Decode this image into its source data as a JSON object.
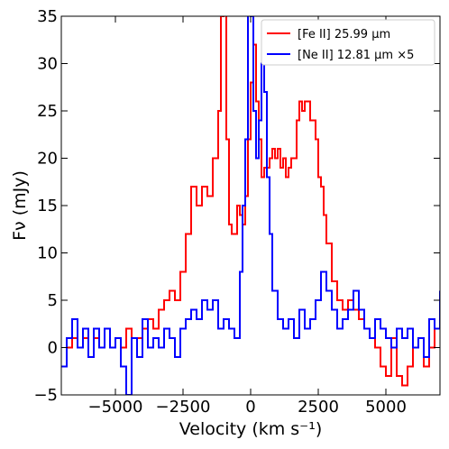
{
  "chart_data": {
    "type": "line",
    "title": "",
    "xlabel": "Velocity (km s⁻¹)",
    "ylabel": "Fν (mJy)",
    "xlim": [
      -7000,
      7000
    ],
    "ylim": [
      -5,
      35
    ],
    "xticks": [
      -5000,
      -2500,
      0,
      2500,
      5000
    ],
    "yticks": [
      -5,
      0,
      5,
      10,
      15,
      20,
      25,
      30,
      35
    ],
    "xtick_labels": [
      "−5000",
      "−2500",
      "0",
      "2500",
      "5000"
    ],
    "ytick_labels": [
      "−5",
      "0",
      "5",
      "10",
      "15",
      "20",
      "25",
      "30",
      "35"
    ],
    "grid": false,
    "legend_position": "top-right",
    "series": [
      {
        "name": "[Fe II] 25.99 μm",
        "color": "#ff0000",
        "step": true,
        "x": [
          -7000,
          -6800,
          -6600,
          -6400,
          -6200,
          -6000,
          -5800,
          -5600,
          -5400,
          -5200,
          -5000,
          -4800,
          -4600,
          -4400,
          -4200,
          -4000,
          -3800,
          -3600,
          -3400,
          -3200,
          -3000,
          -2800,
          -2600,
          -2400,
          -2200,
          -2000,
          -1800,
          -1600,
          -1400,
          -1200,
          -1100,
          -1000,
          -900,
          -800,
          -700,
          -600,
          -500,
          -400,
          -300,
          -200,
          -100,
          0,
          100,
          200,
          300,
          400,
          500,
          600,
          700,
          800,
          900,
          1000,
          1100,
          1200,
          1300,
          1400,
          1500,
          1600,
          1700,
          1800,
          1900,
          2000,
          2200,
          2400,
          2500,
          2600,
          2700,
          2800,
          3000,
          3200,
          3400,
          3600,
          3800,
          4000,
          4200,
          4400,
          4600,
          4800,
          5000,
          5200,
          5400,
          5600,
          5800,
          6000,
          6200,
          6400,
          6600,
          6800,
          7000
        ],
        "y": [
          -2,
          0,
          1,
          0,
          1,
          -1,
          1,
          0,
          2,
          0,
          1,
          0,
          2,
          1,
          1,
          2,
          3,
          2,
          4,
          5,
          6,
          5,
          8,
          12,
          17,
          15,
          17,
          16,
          20,
          25,
          35,
          40,
          22,
          13,
          12,
          12,
          15,
          14,
          13,
          16,
          22,
          28,
          32,
          26,
          22,
          18,
          19,
          19,
          20,
          21,
          20,
          21,
          19,
          20,
          18,
          19,
          20,
          20,
          24,
          26,
          25,
          26,
          24,
          22,
          18,
          17,
          14,
          11,
          7,
          5,
          4,
          5,
          4,
          3,
          2,
          1,
          0,
          -2,
          -3,
          1,
          -3,
          -4,
          -2,
          0,
          1,
          -2,
          0,
          2,
          3
        ]
      },
      {
        "name": "[Ne II] 12.81 μm ×5",
        "color": "#0000ff",
        "step": true,
        "x": [
          -7000,
          -6800,
          -6600,
          -6400,
          -6200,
          -6000,
          -5800,
          -5600,
          -5400,
          -5200,
          -5000,
          -4800,
          -4600,
          -4400,
          -4200,
          -4000,
          -3800,
          -3600,
          -3400,
          -3200,
          -3000,
          -2800,
          -2600,
          -2400,
          -2200,
          -2000,
          -1800,
          -1600,
          -1400,
          -1200,
          -1000,
          -800,
          -600,
          -400,
          -300,
          -200,
          -100,
          0,
          100,
          200,
          300,
          400,
          500,
          600,
          700,
          800,
          1000,
          1200,
          1400,
          1600,
          1800,
          2000,
          2200,
          2400,
          2600,
          2800,
          3000,
          3200,
          3400,
          3600,
          3800,
          4000,
          4200,
          4400,
          4600,
          4800,
          5000,
          5200,
          5400,
          5600,
          5800,
          6000,
          6200,
          6400,
          6600,
          6800,
          7000
        ],
        "y": [
          -2,
          1,
          3,
          0,
          2,
          -1,
          2,
          0,
          2,
          0,
          1,
          -2,
          -5,
          1,
          -1,
          3,
          0,
          1,
          0,
          2,
          1,
          -1,
          2,
          3,
          4,
          3,
          5,
          4,
          5,
          2,
          3,
          2,
          1,
          8,
          15,
          22,
          40,
          35,
          25,
          20,
          24,
          30,
          27,
          18,
          12,
          6,
          3,
          2,
          3,
          1,
          4,
          2,
          3,
          5,
          8,
          6,
          4,
          2,
          3,
          4,
          6,
          4,
          2,
          1,
          3,
          2,
          1,
          0,
          2,
          1,
          2,
          0,
          1,
          -1,
          3,
          2,
          6
        ]
      }
    ]
  }
}
